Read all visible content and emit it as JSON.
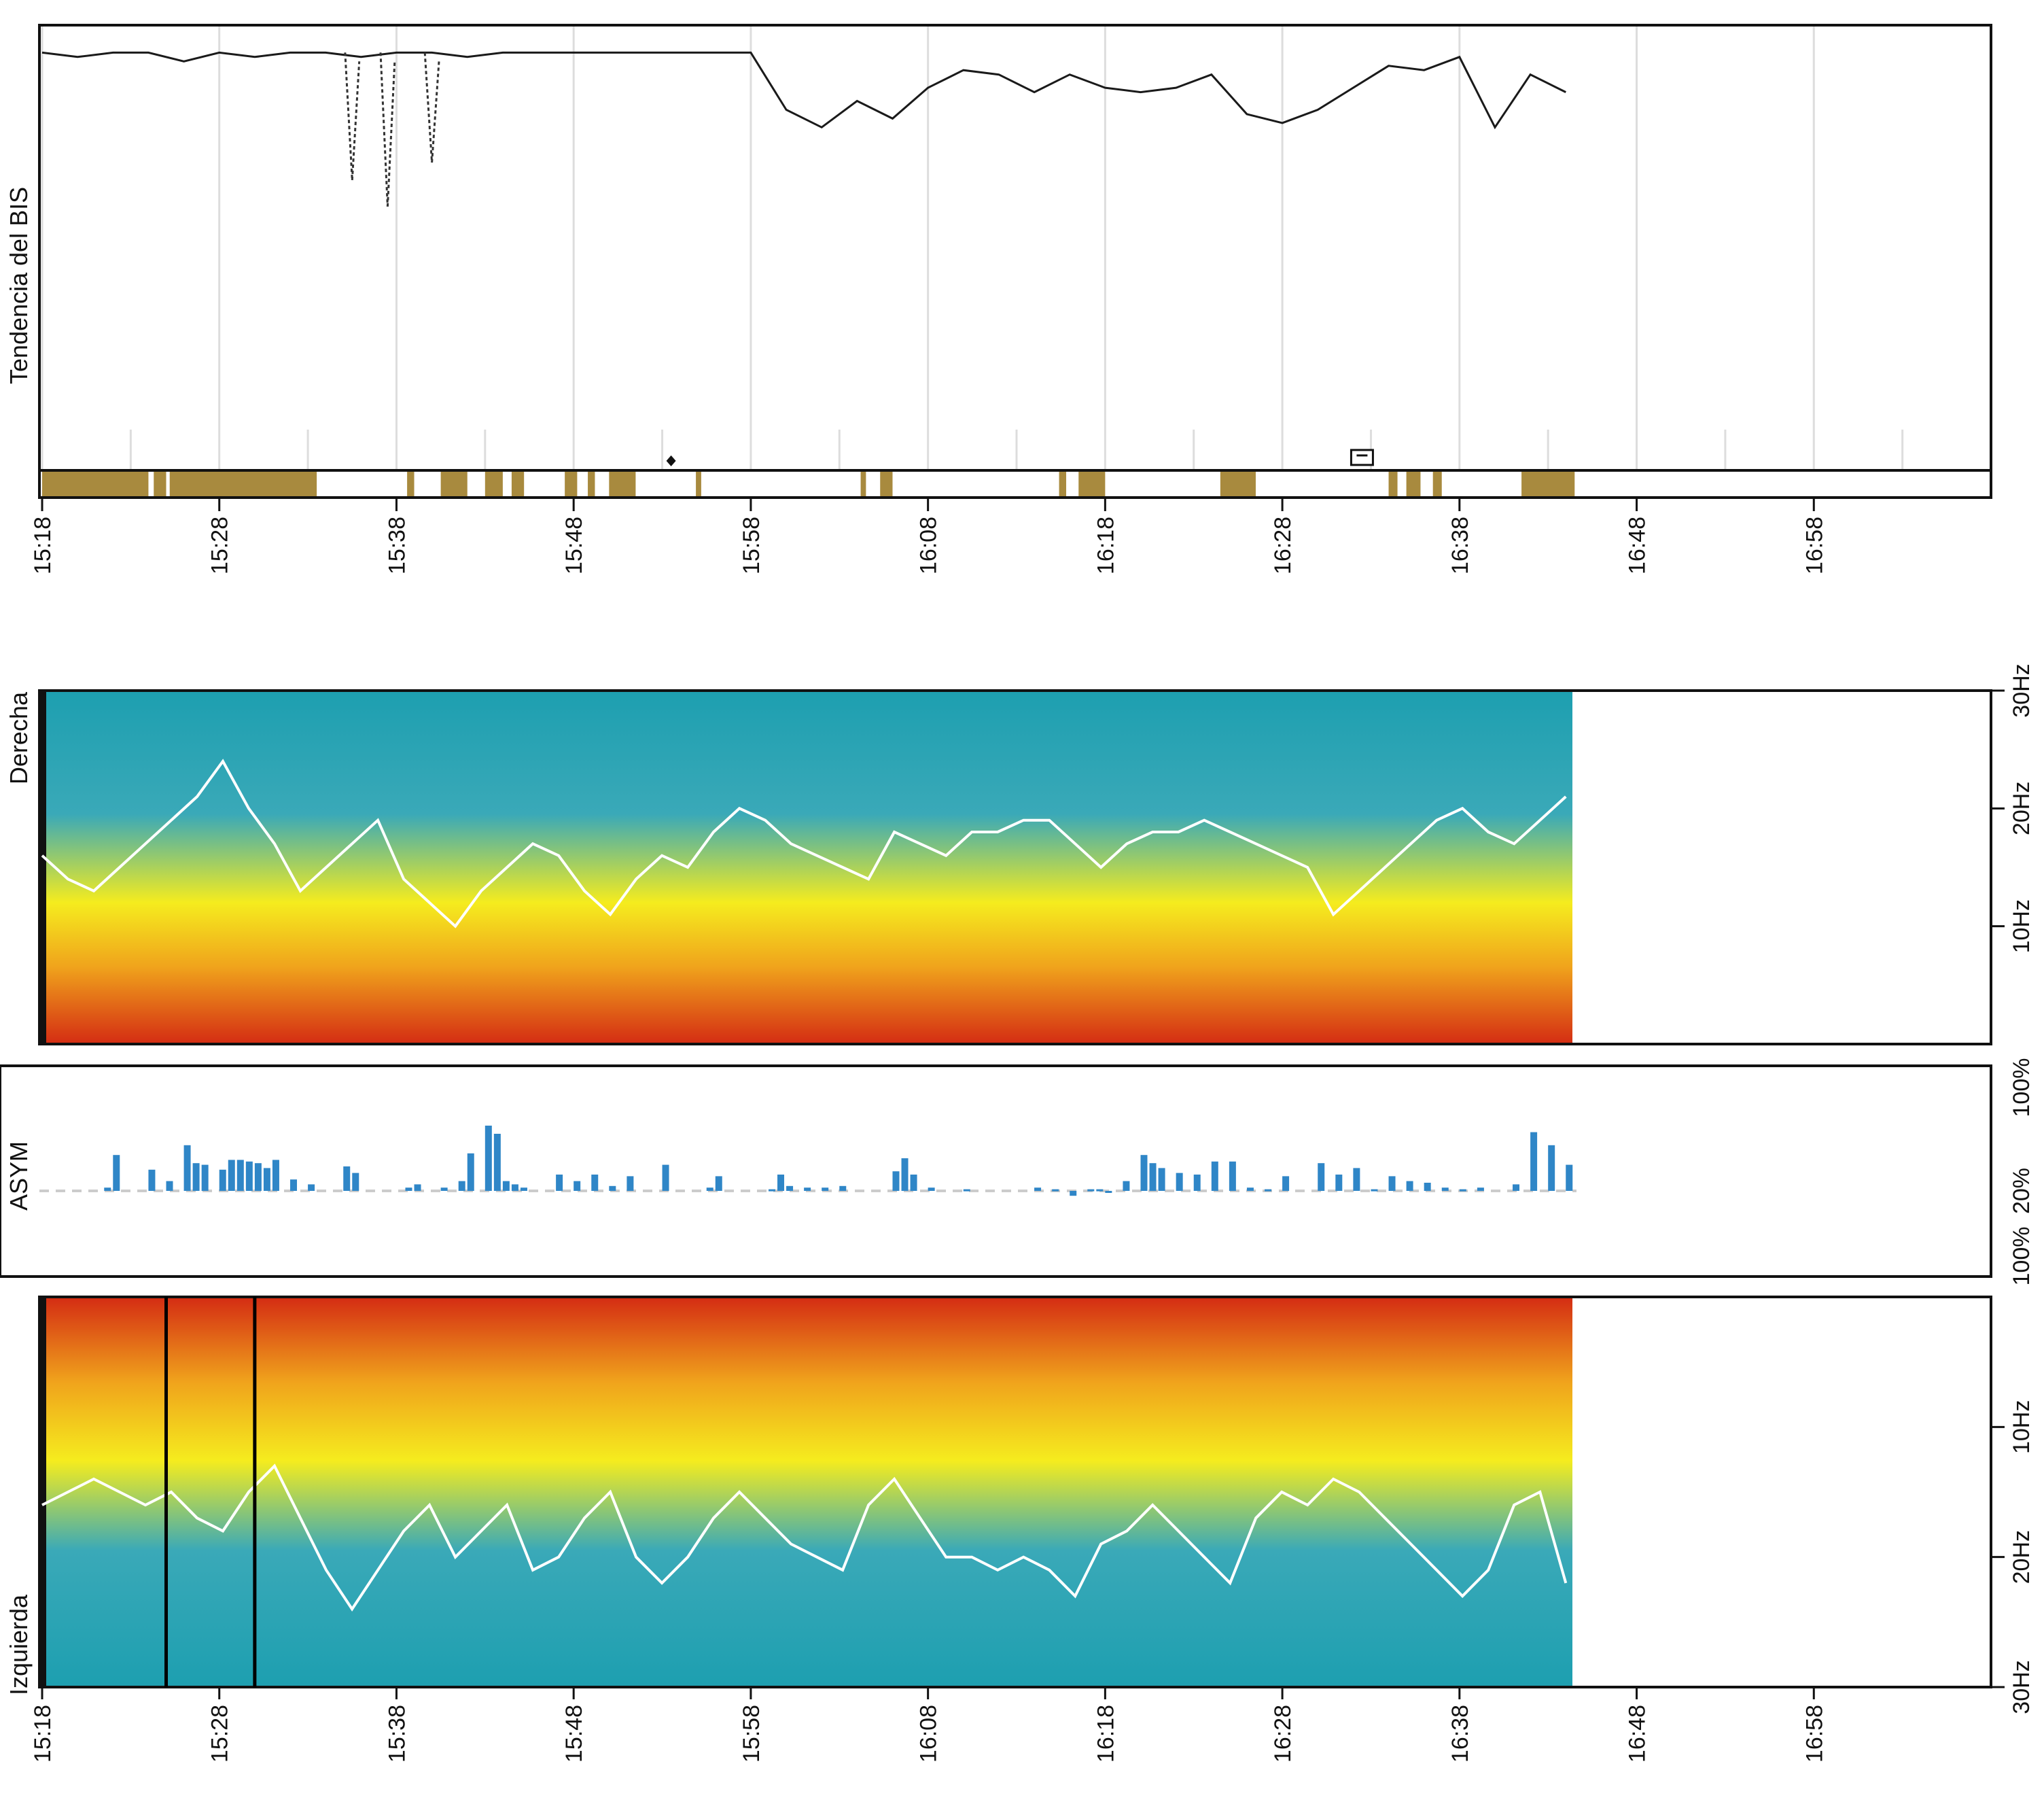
{
  "chart_data": [
    {
      "type": "line",
      "ylabel": "Tendencia del BIS",
      "xlabel": "",
      "x_ticks": [
        "15:18",
        "15:28",
        "15:38",
        "15:48",
        "15:58",
        "16:08",
        "16:18",
        "16:28",
        "16:38",
        "16:48",
        "16:58"
      ],
      "x_range_min": [
        0,
        110
      ],
      "ylim": [
        0,
        100
      ],
      "grid": true,
      "series": [
        {
          "values_x_min": [
            0,
            2,
            4,
            6,
            8,
            10,
            12,
            14,
            16,
            18,
            20,
            22,
            24,
            26,
            28,
            30,
            32,
            34,
            36,
            38,
            40,
            42,
            44,
            46,
            48,
            50,
            52,
            54,
            56,
            58,
            60,
            62,
            64,
            66,
            68,
            70,
            72,
            74,
            76,
            78,
            80,
            82,
            84,
            86
          ],
          "values": [
            95,
            94,
            95,
            95,
            93,
            95,
            94,
            95,
            95,
            94,
            95,
            95,
            94,
            95,
            95,
            95,
            95,
            95,
            95,
            95,
            95,
            82,
            78,
            84,
            80,
            87,
            91,
            90,
            86,
            90,
            87,
            86,
            87,
            90,
            81,
            79,
            82,
            87,
            92,
            91,
            94,
            78,
            90,
            86
          ]
        }
      ],
      "dips": [
        {
          "x_min": 17.5,
          "value": 66
        },
        {
          "x_min": 19.5,
          "value": 60
        },
        {
          "x_min": 22,
          "value": 70
        }
      ],
      "markers": [
        {
          "x_min": 35.5,
          "shape": "diamond"
        },
        {
          "x_min": 74.5,
          "shape": "box"
        }
      ],
      "artifact_segments_min": [
        [
          0,
          6
        ],
        [
          6.3,
          7
        ],
        [
          7.2,
          15.5
        ],
        [
          20.6,
          21
        ],
        [
          22.5,
          24
        ],
        [
          25,
          26
        ],
        [
          26.5,
          27.2
        ],
        [
          29.5,
          30.2
        ],
        [
          30.8,
          31.2
        ],
        [
          32,
          33.5
        ],
        [
          36.9,
          37.2
        ],
        [
          46.2,
          46.5
        ],
        [
          47.3,
          48
        ],
        [
          57.4,
          57.8
        ],
        [
          58.5,
          60
        ],
        [
          66.5,
          68.5
        ],
        [
          76,
          76.5
        ],
        [
          77,
          77.8
        ],
        [
          78.5,
          79
        ],
        [
          83.5,
          86.5
        ]
      ],
      "colors": {
        "line": "#1a1a1a",
        "artifact": "#a88a3e",
        "grid": "#dddddd"
      }
    },
    {
      "type": "heatmap",
      "ylabel": "Derecha",
      "y_ticks": [
        "30Hz",
        "20Hz",
        "10Hz"
      ],
      "ylim": [
        0,
        30
      ],
      "x_range_min": [
        0,
        110
      ],
      "data_end_min": 86,
      "sef_values": [
        16,
        14,
        13,
        15,
        17,
        19,
        21,
        24,
        20,
        17,
        13,
        15,
        17,
        19,
        14,
        12,
        10,
        13,
        15,
        17,
        16,
        13,
        11,
        14,
        16,
        15,
        18,
        20,
        19,
        17,
        16,
        15,
        14,
        18,
        17,
        16,
        18,
        18,
        19,
        19,
        17,
        15,
        17,
        18,
        18,
        19,
        18,
        17,
        16,
        15,
        11,
        13,
        15,
        17,
        19,
        20,
        18,
        17,
        19,
        21
      ],
      "colors": {
        "low": "#1d9fb0",
        "mid": "#f5ec1e",
        "high": "#d42c13",
        "line": "#ffffff"
      }
    },
    {
      "type": "bar",
      "ylabel": "ASYM",
      "y_ticks_right": [
        "100%",
        "20%",
        "100%"
      ],
      "baseline_label": "20%",
      "x_range_min": [
        0,
        110
      ],
      "values_x_min": [
        3.5,
        4,
        6,
        7,
        8,
        8.5,
        9,
        10,
        10.5,
        11,
        11.5,
        12,
        12.5,
        13,
        14,
        15,
        17,
        17.5,
        20.5,
        21,
        22.5,
        23.5,
        24,
        25,
        25.5,
        26,
        26.5,
        27,
        29,
        30,
        31,
        32,
        33,
        35,
        37.5,
        38,
        41,
        41.5,
        42,
        43,
        44,
        45,
        48,
        48.5,
        49,
        50,
        52,
        56,
        57,
        58,
        59,
        59.5,
        60,
        61,
        62,
        62.5,
        63,
        64,
        65,
        66,
        67,
        68,
        69,
        70,
        72,
        73,
        74,
        75,
        76,
        77,
        78,
        79,
        80,
        81,
        83,
        84,
        85,
        86
      ],
      "values": [
        2,
        22,
        13,
        6,
        28,
        17,
        16,
        13,
        19,
        19,
        18,
        17,
        14,
        19,
        7,
        4,
        15,
        11,
        2,
        4,
        2,
        6,
        23,
        40,
        35,
        6,
        4,
        2,
        10,
        6,
        10,
        3,
        9,
        16,
        2,
        9,
        1,
        10,
        3,
        2,
        2,
        3,
        12,
        20,
        10,
        2,
        1,
        2,
        1,
        -3,
        1,
        1,
        -1,
        6,
        22,
        17,
        14,
        11,
        10,
        18,
        18,
        2,
        1,
        9,
        17,
        10,
        14,
        1,
        9,
        6,
        5,
        2,
        1,
        2,
        4,
        36,
        28,
        16
      ],
      "colors": {
        "bars": "#2f86c7",
        "baseline": "#cccccc"
      }
    },
    {
      "type": "heatmap",
      "ylabel": "Izquierda",
      "y_ticks": [
        "10Hz",
        "20Hz",
        "30Hz"
      ],
      "ylim": [
        0,
        30
      ],
      "x_range_min": [
        0,
        110
      ],
      "data_end_min": 86,
      "sef_values": [
        16,
        15,
        14,
        15,
        16,
        15,
        17,
        18,
        15,
        13,
        17,
        21,
        24,
        21,
        18,
        16,
        20,
        18,
        16,
        21,
        20,
        17,
        15,
        20,
        22,
        20,
        17,
        15,
        17,
        19,
        20,
        21,
        16,
        14,
        17,
        20,
        20,
        21,
        20,
        21,
        23,
        19,
        18,
        16,
        18,
        20,
        22,
        17,
        15,
        16,
        14,
        15,
        17,
        19,
        21,
        23,
        21,
        16,
        15,
        22
      ],
      "vertical_markers_min": [
        7,
        12
      ],
      "x_ticks": [
        "15:18",
        "15:28",
        "15:38",
        "15:48",
        "15:58",
        "16:08",
        "16:18",
        "16:28",
        "16:38",
        "16:48",
        "16:58"
      ],
      "colors": {
        "low": "#1d9fb0",
        "mid": "#f5ec1e",
        "high": "#d42c13",
        "line": "#ffffff",
        "marker": "#000000"
      }
    }
  ]
}
